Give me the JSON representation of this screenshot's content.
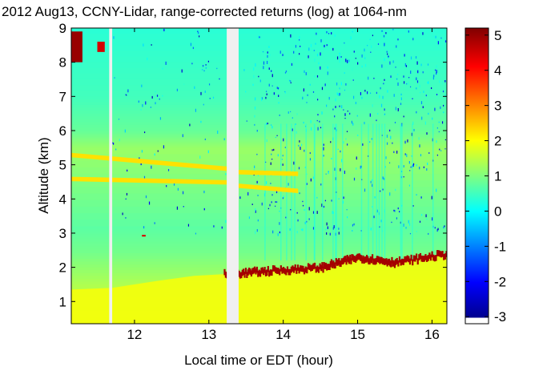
{
  "chart_data": {
    "type": "heatmap",
    "title": "2012 Aug13, CCNY-Lidar, range-corrected returns (log) at 1064-nm",
    "xlabel": "Local time or EDT (hour)",
    "ylabel": "Altitude (km)",
    "xlim": [
      11.15,
      16.2
    ],
    "ylim": [
      0.35,
      9
    ],
    "x_ticks": [
      {
        "value": 12,
        "label": "12"
      },
      {
        "value": 13,
        "label": "13"
      },
      {
        "value": 14,
        "label": "14"
      },
      {
        "value": 15,
        "label": "15"
      },
      {
        "value": 16,
        "label": "16"
      }
    ],
    "y_ticks": [
      {
        "value": 1,
        "label": "1"
      },
      {
        "value": 2,
        "label": "2"
      },
      {
        "value": 3,
        "label": "3"
      },
      {
        "value": 4,
        "label": "4"
      },
      {
        "value": 5,
        "label": "5"
      },
      {
        "value": 6,
        "label": "6"
      },
      {
        "value": 7,
        "label": "7"
      },
      {
        "value": 8,
        "label": "8"
      },
      {
        "value": 9,
        "label": "9"
      }
    ],
    "colorbar": {
      "range": [
        -3.2,
        5.2
      ],
      "ticks": [
        {
          "value": 5,
          "label": "5"
        },
        {
          "value": 4,
          "label": "4"
        },
        {
          "value": 3,
          "label": "3"
        },
        {
          "value": 2,
          "label": "2"
        },
        {
          "value": 1,
          "label": "1"
        },
        {
          "value": 0,
          "label": "0"
        },
        {
          "value": -1,
          "label": "-1"
        },
        {
          "value": -2,
          "label": "-2"
        },
        {
          "value": -3,
          "label": "-3"
        }
      ]
    },
    "data_gaps_hours": [
      [
        11.66,
        11.7
      ],
      [
        13.24,
        13.4
      ]
    ],
    "features": {
      "boundary_layer_top_km": [
        {
          "t": 11.15,
          "z": 1.35
        },
        {
          "t": 11.7,
          "z": 1.4
        },
        {
          "t": 12.3,
          "z": 1.6
        },
        {
          "t": 12.8,
          "z": 1.75
        },
        {
          "t": 13.2,
          "z": 1.8
        },
        {
          "t": 13.8,
          "z": 1.9
        },
        {
          "t": 14.5,
          "z": 2.0
        },
        {
          "t": 15.0,
          "z": 2.3
        },
        {
          "t": 15.5,
          "z": 2.15
        },
        {
          "t": 16.2,
          "z": 2.4
        }
      ],
      "aerosol_layers_km": [
        {
          "t0": 11.15,
          "t1": 13.24,
          "z0": 5.3,
          "z1": 4.9
        },
        {
          "t0": 11.15,
          "t1": 13.24,
          "z0": 4.6,
          "z1": 4.5
        },
        {
          "t0": 13.4,
          "t1": 14.2,
          "z0": 4.8,
          "z1": 4.75
        },
        {
          "t0": 13.4,
          "t1": 14.2,
          "z0": 4.4,
          "z1": 4.25
        }
      ],
      "cloud_patches": [
        {
          "t0": 11.15,
          "t1": 11.3,
          "z0": 8.0,
          "z1": 8.9,
          "value": 5.0
        },
        {
          "t0": 11.5,
          "t1": 11.6,
          "z0": 8.3,
          "z1": 8.6,
          "value": 4.5
        },
        {
          "t0": 12.1,
          "t1": 12.15,
          "z0": 2.9,
          "z1": 2.95,
          "value": 4.5
        }
      ]
    }
  }
}
